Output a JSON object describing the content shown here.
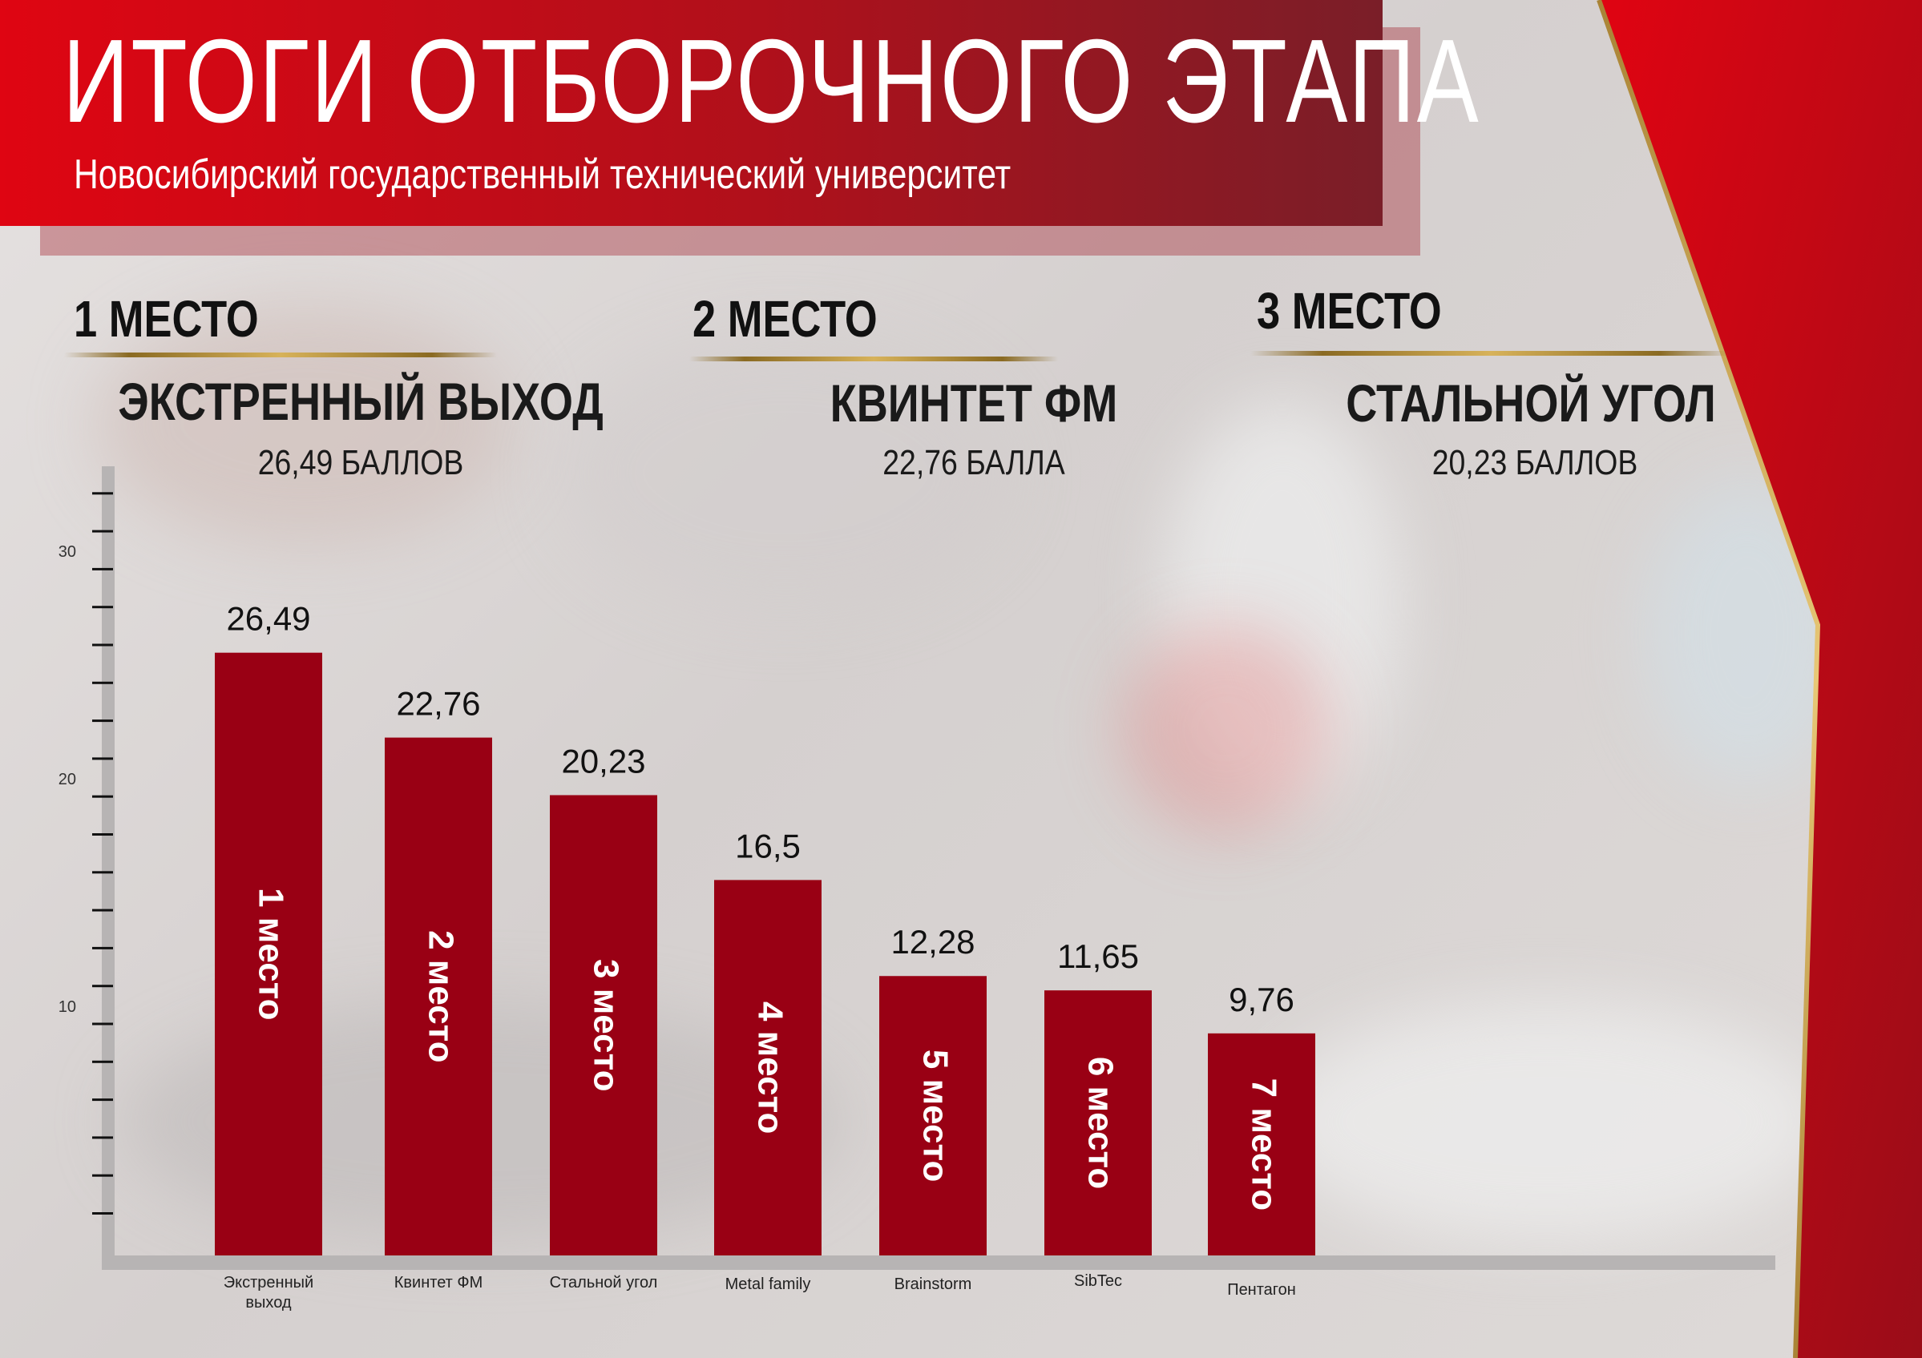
{
  "header": {
    "title": "ИТОГИ ОТБОРОЧНОГО ЭТАПА",
    "subtitle": "Новосибирский государственный технический университет"
  },
  "podium": [
    {
      "place": "1 МЕСТО",
      "team": "ЭКСТРЕННЫЙ ВЫХОД",
      "score": "26,49 БАЛЛОВ"
    },
    {
      "place": "2 МЕСТО",
      "team": "КВИНТЕТ ФМ",
      "score": "22,76 БАЛЛА"
    },
    {
      "place": "3 МЕСТО",
      "team": "СТАЛЬНОЙ УГОЛ",
      "score": "20,23 БАЛЛОВ"
    }
  ],
  "colors": {
    "bar": "#990014",
    "header_red": "#df0512",
    "header_dark": "#7a1e28",
    "gold": "#c9a34e"
  },
  "chart_data": {
    "type": "bar",
    "categories": [
      "Экстренный выход",
      "Квинтет ФМ",
      "Стальной угол",
      "Metal family",
      "Brainstorm",
      "SibTec",
      "Пентагон"
    ],
    "category_lines": [
      [
        "Экстренный",
        "выход"
      ],
      [
        "Квинтет ФМ"
      ],
      [
        "Стальной угол"
      ],
      [
        "Metal family"
      ],
      [
        "Brainstorm"
      ],
      [
        "SibTec"
      ],
      [
        "Пентагон"
      ]
    ],
    "values": [
      26.49,
      22.76,
      20.23,
      16.5,
      12.28,
      11.65,
      9.76
    ],
    "value_labels": [
      "26,49",
      "22,76",
      "20,23",
      "16,5",
      "12,28",
      "11,65",
      "9,76"
    ],
    "bar_labels": [
      "1 место",
      "2 место",
      "3 место",
      "4 место",
      "5 место",
      "6 место",
      "7 место"
    ],
    "y_ticks": [
      10,
      20,
      30
    ],
    "ylim": [
      0,
      35
    ],
    "grid": false
  }
}
